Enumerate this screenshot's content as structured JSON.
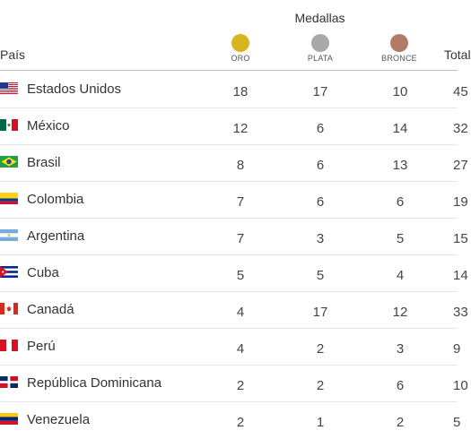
{
  "header": {
    "medals_title": "Medallas",
    "country_label": "País",
    "total_label": "Total",
    "gold_label": "ORO",
    "silver_label": "PLATA",
    "bronze_label": "BRONCE"
  },
  "colors": {
    "gold": "#d9b41f",
    "silver": "#a9a9a9",
    "bronze": "#b07a66"
  },
  "rows": [
    {
      "country": "Estados Unidos",
      "gold": "18",
      "silver": "17",
      "bronze": "10",
      "total": "45",
      "flag": "usa-flag"
    },
    {
      "country": "México",
      "gold": "12",
      "silver": "6",
      "bronze": "14",
      "total": "32",
      "flag": "mexico-flag"
    },
    {
      "country": "Brasil",
      "gold": "8",
      "silver": "6",
      "bronze": "13",
      "total": "27",
      "flag": "brazil-flag"
    },
    {
      "country": "Colombia",
      "gold": "7",
      "silver": "6",
      "bronze": "6",
      "total": "19",
      "flag": "colombia-flag"
    },
    {
      "country": "Argentina",
      "gold": "7",
      "silver": "3",
      "bronze": "5",
      "total": "15",
      "flag": "argentina-flag"
    },
    {
      "country": "Cuba",
      "gold": "5",
      "silver": "5",
      "bronze": "4",
      "total": "14",
      "flag": "cuba-flag"
    },
    {
      "country": "Canadá",
      "gold": "4",
      "silver": "17",
      "bronze": "12",
      "total": "33",
      "flag": "canada-flag"
    },
    {
      "country": "Perú",
      "gold": "4",
      "silver": "2",
      "bronze": "3",
      "total": "9",
      "flag": "peru-flag"
    },
    {
      "country": "República Dominicana",
      "gold": "2",
      "silver": "2",
      "bronze": "6",
      "total": "10",
      "flag": "dominican-republic-flag"
    },
    {
      "country": "Venezuela",
      "gold": "2",
      "silver": "1",
      "bronze": "2",
      "total": "5",
      "flag": "venezuela-flag"
    }
  ]
}
